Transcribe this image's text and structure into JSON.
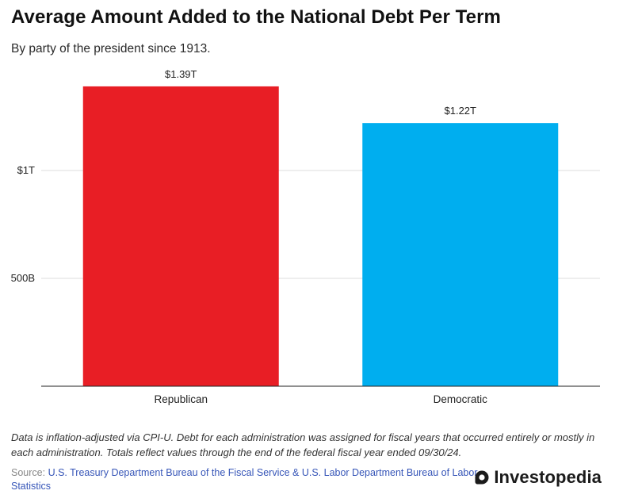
{
  "title": "Average Amount Added to the National Debt Per Term",
  "subtitle": "By party of the president since 1913.",
  "chart_data": {
    "type": "bar",
    "categories": [
      "Republican",
      "Democratic"
    ],
    "values": [
      1390000000000,
      1220000000000
    ],
    "data_labels": [
      "$1.39T",
      "$1.22T"
    ],
    "colors": [
      "#e81e25",
      "#00aeef"
    ],
    "y_ticks": [
      {
        "value": 500000000000,
        "label": "500B"
      },
      {
        "value": 1000000000000,
        "label": "$1T"
      }
    ],
    "ylim": [
      0,
      1400000000000
    ],
    "grid": true
  },
  "footer": {
    "note": "Data is inflation-adjusted via CPI-U. Debt for each administration was assigned for fiscal years that occurred entirely or mostly in each administration. Totals reflect values through the end of the federal fiscal year ended 09/30/24.",
    "source_prefix": "Source: ",
    "source_link": "U.S. Treasury Department Bureau of the Fiscal Service & U.S. Labor Department Bureau of Labor Statistics",
    "brand": "Investopedia"
  }
}
